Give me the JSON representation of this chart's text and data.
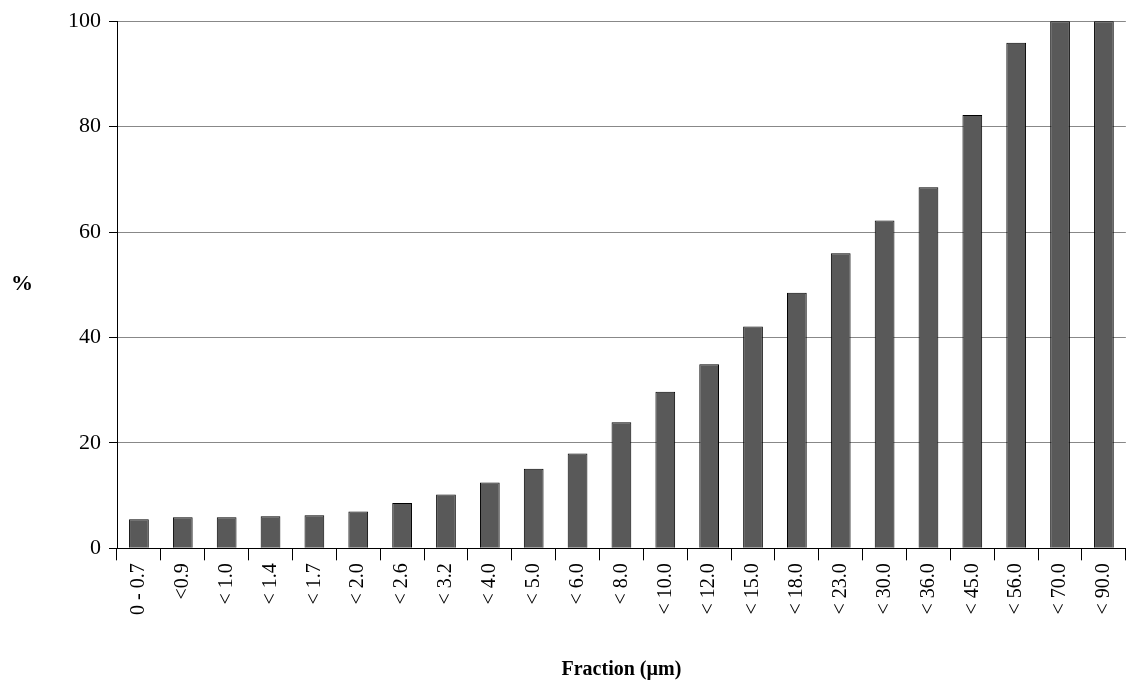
{
  "chart_data": {
    "type": "bar",
    "xlabel": "Fraction (µm)",
    "ylabel": "%",
    "categories": [
      "0 - 0.7",
      "<0.9",
      "< 1.0",
      "< 1.4",
      "< 1.7",
      "< 2.0",
      "< 2.6",
      "< 3.2",
      "< 4.0",
      "< 5.0",
      "< 6.0",
      "< 8.0",
      "< 10.0",
      "< 12.0",
      "< 15.0",
      "< 18.0",
      "< 23.0",
      "< 30.0",
      "< 36.0",
      "< 45.0",
      "< 56.0",
      "< 70.0",
      "< 90.0"
    ],
    "values": [
      5.5,
      5.9,
      5.9,
      6.1,
      6.3,
      7.0,
      8.6,
      10.2,
      12.5,
      15.1,
      18.0,
      23.9,
      29.7,
      34.9,
      42.1,
      48.5,
      56.0,
      62.2,
      68.5,
      82.2,
      95.9,
      100,
      100
    ],
    "color": "#595959",
    "ylim": [
      0,
      100
    ],
    "yticks": [
      0,
      20,
      40,
      60,
      80,
      100
    ],
    "grid": "y",
    "legend": false
  }
}
